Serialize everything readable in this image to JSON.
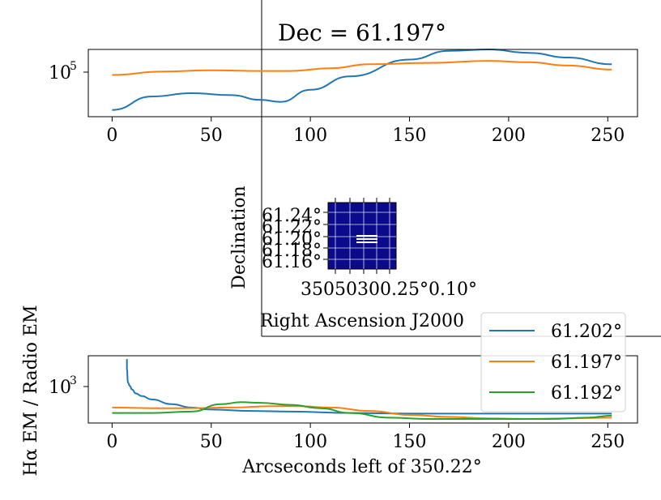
{
  "chart_data": [
    {
      "type": "line",
      "panel": "top",
      "title": "Dec = 61.197°",
      "xlabel": "",
      "ylabel": "",
      "xlim": [
        -12,
        265
      ],
      "x_ticks": [
        "0",
        "50",
        "100",
        "150",
        "200",
        "250"
      ],
      "y_tick_label": "10",
      "y_tick_exponent": "5",
      "series": [
        {
          "color": "#1f77b4",
          "x": [
            0,
            20,
            40,
            60,
            75,
            85,
            100,
            120,
            150,
            170,
            190,
            210,
            230,
            252
          ],
          "y": [
            0.1,
            0.3,
            0.35,
            0.32,
            0.25,
            0.22,
            0.4,
            0.6,
            0.85,
            0.98,
            1.0,
            0.95,
            0.88,
            0.78
          ]
        },
        {
          "color": "#ff7f0e",
          "x": [
            0,
            25,
            50,
            75,
            90,
            110,
            130,
            160,
            190,
            210,
            230,
            252
          ],
          "y": [
            0.62,
            0.67,
            0.69,
            0.68,
            0.68,
            0.72,
            0.78,
            0.8,
            0.83,
            0.81,
            0.76,
            0.7
          ]
        }
      ]
    },
    {
      "type": "image",
      "panel": "middle",
      "xlabel": "Right Ascension J2000",
      "ylabel": "Declination",
      "y_ticks": [
        "61.24°",
        "61.22°",
        "61.20°",
        "61.18°",
        "61.16°"
      ],
      "x_ticks": [
        "350.30°",
        "350.25°",
        "350.20°",
        "350.15°",
        "350.10°"
      ],
      "x_ticks_overlapped_text": "35050300.25°0.10°",
      "background_color": "#0a0a8a",
      "marker_color": "#ffffff"
    },
    {
      "type": "line",
      "panel": "bottom",
      "xlabel": "Arcseconds left of 350.22°",
      "ylabel": "Hα EM / Radio EM",
      "xlim": [
        -12,
        265
      ],
      "x_ticks": [
        "0",
        "50",
        "100",
        "150",
        "200",
        "250"
      ],
      "y_tick_label": "10",
      "y_tick_exponent": "3",
      "legend_placement": "upper-right",
      "series": [
        {
          "name": "61.202°",
          "color": "#1f77b4",
          "x": [
            7.5,
            7.5,
            8,
            9,
            10,
            12,
            15,
            20,
            30,
            40,
            50,
            70,
            90,
            120,
            150,
            180,
            210,
            240,
            252
          ],
          "y": [
            0.95,
            0.8,
            0.6,
            0.55,
            0.5,
            0.44,
            0.4,
            0.35,
            0.28,
            0.23,
            0.2,
            0.18,
            0.17,
            0.15,
            0.14,
            0.14,
            0.14,
            0.14,
            0.14
          ]
        },
        {
          "name": "61.197°",
          "color": "#ff7f0e",
          "x": [
            0,
            20,
            40,
            60,
            80,
            95,
            110,
            130,
            150,
            170,
            190,
            210,
            230,
            252
          ],
          "y": [
            0.23,
            0.22,
            0.22,
            0.23,
            0.25,
            0.25,
            0.23,
            0.18,
            0.12,
            0.09,
            0.07,
            0.06,
            0.07,
            0.08
          ]
        },
        {
          "name": "61.192°",
          "color": "#2ca02c",
          "x": [
            0,
            20,
            40,
            55,
            65,
            75,
            90,
            105,
            120,
            140,
            160,
            180,
            200,
            220,
            240,
            252
          ],
          "y": [
            0.15,
            0.15,
            0.17,
            0.28,
            0.31,
            0.3,
            0.27,
            0.22,
            0.15,
            0.08,
            0.06,
            0.06,
            0.06,
            0.06,
            0.08,
            0.11
          ]
        }
      ]
    }
  ]
}
